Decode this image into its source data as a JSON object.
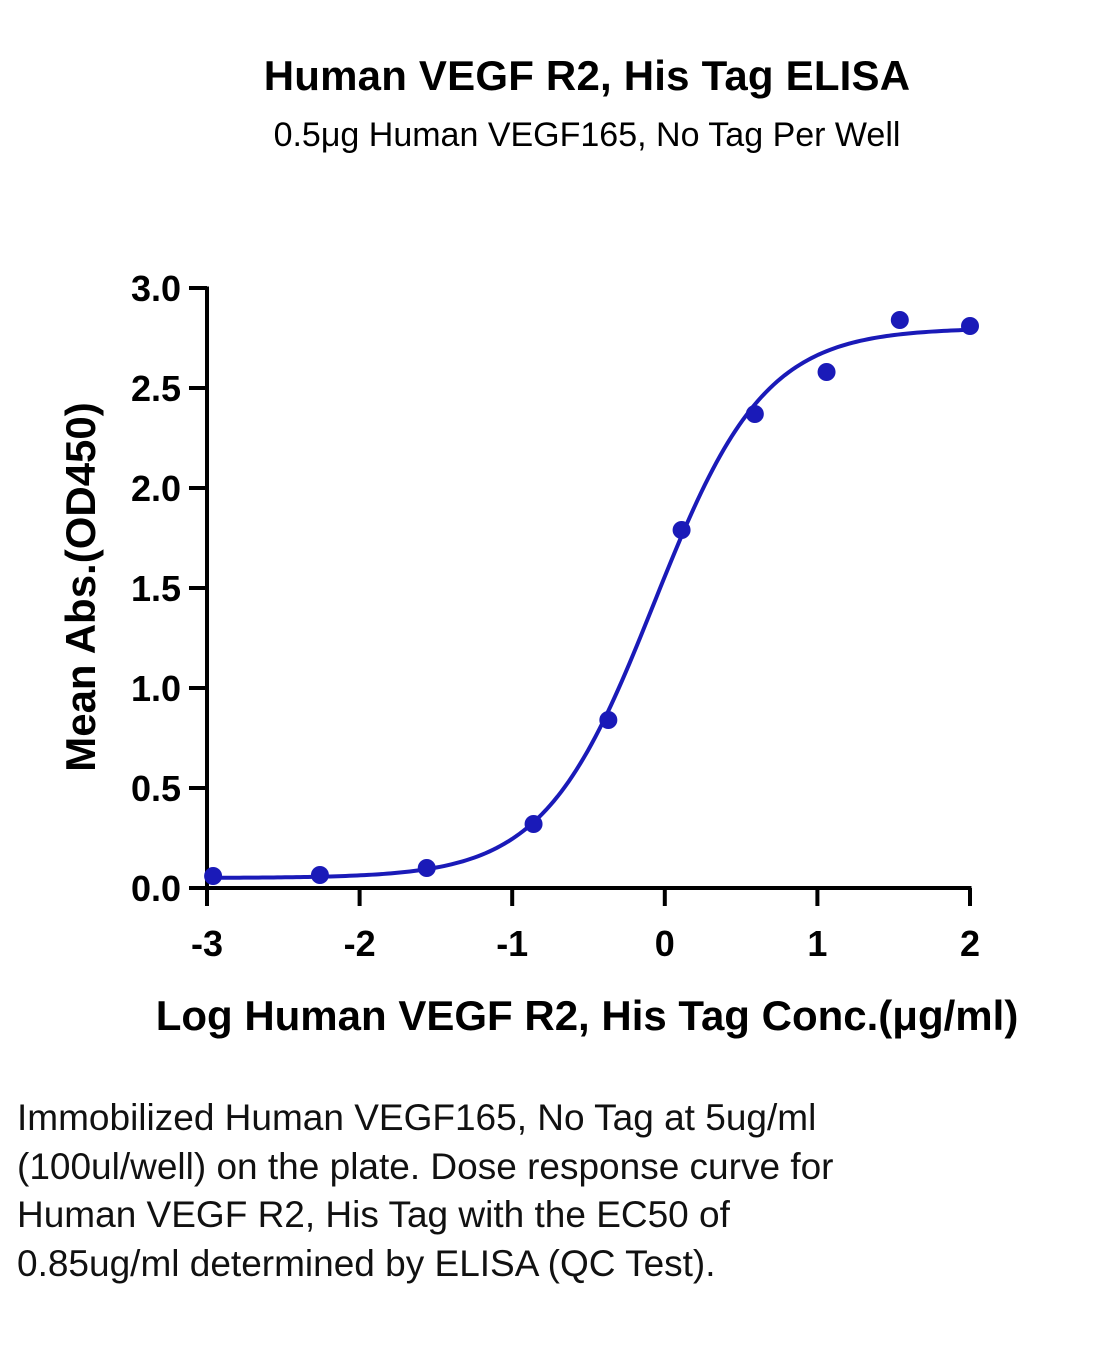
{
  "chart_data": {
    "type": "scatter",
    "title": "Human VEGF R2, His Tag ELISA",
    "subtitle": "0.5μg Human VEGF165, No Tag Per Well",
    "xlabel": "Log Human VEGF R2, His Tag Conc.(μg/ml)",
    "ylabel": "Mean Abs.(OD450)",
    "xlim": [
      -3,
      2
    ],
    "ylim": [
      0,
      3
    ],
    "xticks": [
      -3,
      -2,
      -1,
      0,
      1,
      2
    ],
    "xtick_labels": [
      "-3",
      "-2",
      "-1",
      "0",
      "1",
      "2"
    ],
    "yticks": [
      0,
      0.5,
      1,
      1.5,
      2,
      2.5,
      3
    ],
    "ytick_labels": [
      "0.0",
      "0.5",
      "1.0",
      "1.5",
      "2.0",
      "2.5",
      "3.0"
    ],
    "grid": false,
    "legend": "none",
    "series": [
      {
        "points": [
          {
            "x": -2.96,
            "y": 0.06
          },
          {
            "x": -2.26,
            "y": 0.065
          },
          {
            "x": -1.56,
            "y": 0.1
          },
          {
            "x": -0.86,
            "y": 0.32
          },
          {
            "x": -0.37,
            "y": 0.84
          },
          {
            "x": 0.11,
            "y": 1.79
          },
          {
            "x": 0.59,
            "y": 2.37
          },
          {
            "x": 1.06,
            "y": 2.58
          },
          {
            "x": 1.54,
            "y": 2.84
          },
          {
            "x": 2.0,
            "y": 2.81
          }
        ],
        "fit": {
          "model": "4PL",
          "bottom": 0.05,
          "top": 2.8,
          "logEC50": -0.07,
          "hill": 1.2,
          "xrange": [
            -2.96,
            2.0
          ]
        }
      }
    ],
    "color": "#1a1ab8"
  },
  "caption": "Immobilized Human VEGF165, No Tag at 5ug/ml (100ul/well) on the plate. Dose response curve for Human VEGF R2, His Tag with the EC50 of 0.85ug/ml determined by ELISA (QC Test)."
}
